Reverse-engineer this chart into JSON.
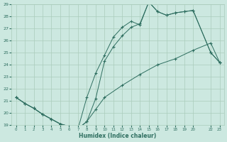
{
  "xlabel": "Humidex (Indice chaleur)",
  "background_color": "#cce8e0",
  "grid_color": "#aaccbb",
  "line_color": "#2e6e60",
  "line1_x": [
    0,
    1,
    2,
    3,
    4,
    5,
    6,
    7,
    8,
    9,
    10,
    11,
    12,
    13,
    14,
    15,
    16,
    17,
    18,
    19,
    20,
    22,
    23
  ],
  "line1_y": [
    21.3,
    20.8,
    20.4,
    19.9,
    19.5,
    19.1,
    18.9,
    18.7,
    19.3,
    21.2,
    24.3,
    25.5,
    26.4,
    27.1,
    27.4,
    29.2,
    28.4,
    28.1,
    28.3,
    28.4,
    28.5,
    25.0,
    24.2
  ],
  "line2_x": [
    0,
    1,
    2,
    3,
    4,
    5,
    6,
    7,
    8,
    9,
    10,
    11,
    12,
    13,
    14,
    15,
    16,
    17,
    18,
    19,
    20,
    22,
    23
  ],
  "line2_y": [
    21.3,
    20.8,
    20.4,
    19.9,
    19.5,
    19.1,
    18.9,
    18.7,
    21.3,
    23.3,
    24.8,
    26.3,
    27.1,
    27.6,
    27.3,
    29.2,
    28.4,
    28.1,
    28.3,
    28.4,
    28.5,
    25.0,
    24.2
  ],
  "line3_x": [
    0,
    1,
    2,
    3,
    4,
    5,
    6,
    7,
    8,
    9,
    10,
    12,
    14,
    16,
    18,
    20,
    22,
    23
  ],
  "line3_y": [
    21.3,
    20.8,
    20.4,
    19.9,
    19.5,
    19.1,
    18.9,
    18.7,
    19.3,
    20.3,
    21.3,
    22.3,
    23.2,
    24.0,
    24.5,
    25.2,
    25.8,
    24.2
  ],
  "ylim": [
    19,
    29
  ],
  "xlim": [
    -0.5,
    23.5
  ],
  "yticks": [
    19,
    20,
    21,
    22,
    23,
    24,
    25,
    26,
    27,
    28,
    29
  ],
  "xticks": [
    0,
    1,
    2,
    3,
    4,
    5,
    6,
    7,
    8,
    9,
    10,
    11,
    12,
    13,
    14,
    15,
    16,
    17,
    18,
    19,
    20,
    22,
    23
  ]
}
